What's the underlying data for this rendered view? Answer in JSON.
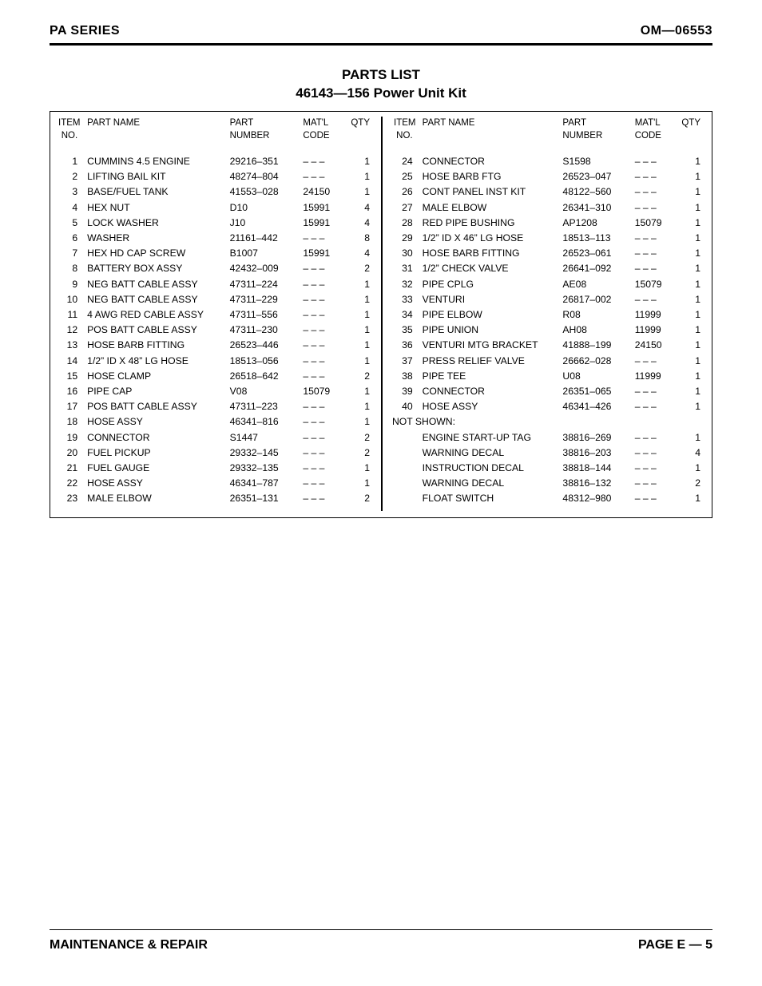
{
  "header": {
    "left": "PA SERIES",
    "right": "OM—06553"
  },
  "title": {
    "line1": "PARTS LIST",
    "line2": "46143—156 Power Unit Kit"
  },
  "columns": {
    "item": "ITEM\nNO.",
    "name": "PART NAME",
    "part": "PART\nNUMBER",
    "matl": "MAT'L\nCODE",
    "qty": "QTY"
  },
  "dash": "– – –",
  "leftRows": [
    {
      "no": "1",
      "name": "CUMMINS 4.5 ENGINE",
      "part": "29216–351",
      "matl": "– – –",
      "qty": "1"
    },
    {
      "no": "2",
      "name": "LIFTING BAIL KIT",
      "part": "48274–804",
      "matl": "– – –",
      "qty": "1"
    },
    {
      "no": "3",
      "name": "BASE/FUEL TANK",
      "part": "41553–028",
      "matl": "24150",
      "qty": "1"
    },
    {
      "no": "4",
      "name": "HEX NUT",
      "part": "D10",
      "matl": "15991",
      "qty": "4"
    },
    {
      "no": "5",
      "name": "LOCK WASHER",
      "part": "J10",
      "matl": "15991",
      "qty": "4"
    },
    {
      "no": "6",
      "name": "WASHER",
      "part": "21161–442",
      "matl": "– – –",
      "qty": "8"
    },
    {
      "no": "7",
      "name": "HEX HD CAP SCREW",
      "part": "B1007",
      "matl": "15991",
      "qty": "4"
    },
    {
      "no": "8",
      "name": "BATTERY BOX ASSY",
      "part": "42432–009",
      "matl": "– – –",
      "qty": "2"
    },
    {
      "no": "9",
      "name": "NEG BATT CABLE ASSY",
      "part": "47311–224",
      "matl": "– – –",
      "qty": "1"
    },
    {
      "no": "10",
      "name": "NEG BATT CABLE ASSY",
      "part": "47311–229",
      "matl": "– – –",
      "qty": "1"
    },
    {
      "no": "11",
      "name": "4 AWG RED CABLE ASSY",
      "part": "47311–556",
      "matl": "– – –",
      "qty": "1"
    },
    {
      "no": "12",
      "name": "POS BATT CABLE ASSY",
      "part": "47311–230",
      "matl": "– – –",
      "qty": "1"
    },
    {
      "no": "13",
      "name": "HOSE BARB FITTING",
      "part": "26523–446",
      "matl": "– – –",
      "qty": "1"
    },
    {
      "no": "14",
      "name": "1/2” ID X 48” LG HOSE",
      "part": "18513–056",
      "matl": "– – –",
      "qty": "1"
    },
    {
      "no": "15",
      "name": "HOSE CLAMP",
      "part": "26518–642",
      "matl": "– – –",
      "qty": "2"
    },
    {
      "no": "16",
      "name": "PIPE CAP",
      "part": "V08",
      "matl": "15079",
      "qty": "1"
    },
    {
      "no": "17",
      "name": "POS BATT CABLE ASSY",
      "part": "47311–223",
      "matl": "– – –",
      "qty": "1"
    },
    {
      "no": "18",
      "name": "HOSE ASSY",
      "part": "46341–816",
      "matl": "– – –",
      "qty": "1"
    },
    {
      "no": "19",
      "name": "CONNECTOR",
      "part": "S1447",
      "matl": "– – –",
      "qty": "2"
    },
    {
      "no": "20",
      "name": "FUEL PICKUP",
      "part": "29332–145",
      "matl": "– – –",
      "qty": "2"
    },
    {
      "no": "21",
      "name": "FUEL GAUGE",
      "part": "29332–135",
      "matl": "– – –",
      "qty": "1"
    },
    {
      "no": "22",
      "name": "HOSE ASSY",
      "part": "46341–787",
      "matl": "– – –",
      "qty": "1"
    },
    {
      "no": "23",
      "name": "MALE ELBOW",
      "part": "26351–131",
      "matl": "– – –",
      "qty": "2"
    }
  ],
  "rightRows": [
    {
      "no": "24",
      "name": "CONNECTOR",
      "part": "S1598",
      "matl": "– – –",
      "qty": "1"
    },
    {
      "no": "25",
      "name": "HOSE BARB FTG",
      "part": "26523–047",
      "matl": "– – –",
      "qty": "1"
    },
    {
      "no": "26",
      "name": "CONT PANEL INST KIT",
      "part": "48122–560",
      "matl": "– – –",
      "qty": "1"
    },
    {
      "no": "27",
      "name": "MALE ELBOW",
      "part": "26341–310",
      "matl": "– – –",
      "qty": "1"
    },
    {
      "no": "28",
      "name": "RED PIPE BUSHING",
      "part": "AP1208",
      "matl": "15079",
      "qty": "1"
    },
    {
      "no": "29",
      "name": "1/2” ID X 46” LG HOSE",
      "part": "18513–113",
      "matl": "– – –",
      "qty": "1"
    },
    {
      "no": "30",
      "name": "HOSE BARB FITTING",
      "part": "26523–061",
      "matl": "– – –",
      "qty": "1"
    },
    {
      "no": "31",
      "name": "1/2” CHECK VALVE",
      "part": "26641–092",
      "matl": "– – –",
      "qty": "1"
    },
    {
      "no": "32",
      "name": "PIPE CPLG",
      "part": "AE08",
      "matl": "15079",
      "qty": "1"
    },
    {
      "no": "33",
      "name": "VENTURI",
      "part": "26817–002",
      "matl": "– – –",
      "qty": "1"
    },
    {
      "no": "34",
      "name": "PIPE ELBOW",
      "part": "R08",
      "matl": "11999",
      "qty": "1"
    },
    {
      "no": "35",
      "name": "PIPE UNION",
      "part": "AH08",
      "matl": "11999",
      "qty": "1"
    },
    {
      "no": "36",
      "name": "VENTURI MTG BRACKET",
      "part": "41888–199",
      "matl": "24150",
      "qty": "1"
    },
    {
      "no": "37",
      "name": "PRESS RELIEF VALVE",
      "part": "26662–028",
      "matl": "– – –",
      "qty": "1"
    },
    {
      "no": "38",
      "name": "PIPE TEE",
      "part": "U08",
      "matl": "11999",
      "qty": "1"
    },
    {
      "no": "39",
      "name": "CONNECTOR",
      "part": "26351–065",
      "matl": "– – –",
      "qty": "1"
    },
    {
      "no": "40",
      "name": "HOSE ASSY",
      "part": "46341–426",
      "matl": "– – –",
      "qty": "1"
    }
  ],
  "notShownLabel": "NOT SHOWN:",
  "notShown": [
    {
      "name": "ENGINE START-UP TAG",
      "part": "38816–269",
      "matl": "– – –",
      "qty": "1"
    },
    {
      "name": "WARNING DECAL",
      "part": "38816–203",
      "matl": "– – –",
      "qty": "4"
    },
    {
      "name": "INSTRUCTION DECAL",
      "part": "38818–144",
      "matl": "– – –",
      "qty": "1"
    },
    {
      "name": "WARNING DECAL",
      "part": "38816–132",
      "matl": "– – –",
      "qty": "2"
    },
    {
      "name": "FLOAT SWITCH",
      "part": "48312–980",
      "matl": "– – –",
      "qty": "1"
    }
  ],
  "footer": {
    "left": "MAINTENANCE & REPAIR",
    "right": "PAGE E — 5"
  }
}
